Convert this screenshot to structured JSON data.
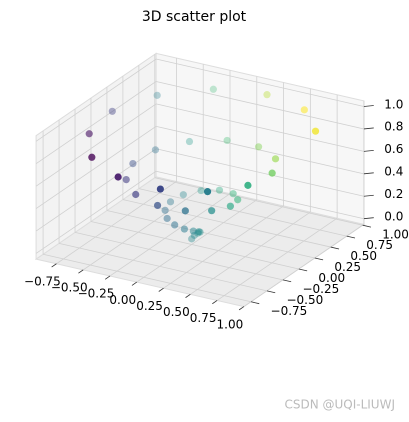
{
  "chart_data": {
    "type": "scatter3d",
    "title": "3D scatter plot",
    "x": [
      0,
      0.012,
      0.042,
      0.075,
      0.091,
      0.075,
      0.021,
      -0.061,
      -0.151,
      -0.22,
      -0.24,
      -0.194,
      -0.084,
      0.07,
      0.23,
      0.352,
      0.396,
      0.339,
      0.185,
      -0.036,
      -0.272,
      -0.462,
      -0.55,
      -0.504,
      -0.322,
      -0.041,
      0.273,
      0.543,
      0.694,
      0.678,
      0.488,
      0.16,
      -0.23,
      -0.587,
      -0.817,
      -0.856,
      -0.676,
      -0.316,
      0.143,
      0.588,
      0.913
    ],
    "y": [
      0,
      0.022,
      0.027,
      0.005,
      -0.042,
      -0.1,
      -0.149,
      -0.164,
      -0.131,
      -0.047,
      0.071,
      0.195,
      0.288,
      0.318,
      0.264,
      0.13,
      -0.058,
      -0.256,
      -0.41,
      -0.474,
      -0.42,
      -0.25,
      0.002,
      0.278,
      0.506,
      0.624,
      0.59,
      0.402,
      0.096,
      -0.257,
      -0.57,
      -0.759,
      -0.766,
      -0.579,
      -0.234,
      0.193,
      0.594,
      0.87,
      0.94,
      0.778,
      0.408
    ],
    "z": [
      0,
      0.025,
      0.05,
      0.075,
      0.1,
      0.125,
      0.15,
      0.175,
      0.2,
      0.225,
      0.25,
      0.275,
      0.3,
      0.325,
      0.35,
      0.375,
      0.4,
      0.425,
      0.45,
      0.475,
      0.5,
      0.525,
      0.55,
      0.575,
      0.6,
      0.625,
      0.65,
      0.675,
      0.7,
      0.725,
      0.75,
      0.775,
      0.8,
      0.825,
      0.85,
      0.875,
      0.9,
      0.925,
      0.95,
      0.975,
      1
    ],
    "colormap": "viridis",
    "xlim": [
      -0.94,
      1.0
    ],
    "ylim": [
      -0.86,
      1.02
    ],
    "zlim": [
      -0.05,
      1.05
    ],
    "xticks": [
      {
        "value": -0.75,
        "label": "−0.75"
      },
      {
        "value": -0.5,
        "label": "−0.50"
      },
      {
        "value": -0.25,
        "label": "−0.25"
      },
      {
        "value": 0,
        "label": "0.00"
      },
      0.25,
      {
        "value": 0.5,
        "label": "0.50"
      },
      0.75,
      {
        "value": 1,
        "label": "1.00"
      }
    ],
    "yticks": [
      {
        "value": -0.75,
        "label": "−0.75"
      },
      {
        "value": -0.5,
        "label": "−0.50"
      },
      {
        "value": -0.25,
        "label": "−0.25"
      },
      {
        "value": 0,
        "label": "0.00"
      },
      0.25,
      {
        "value": 0.5,
        "label": "0.50"
      },
      0.75,
      {
        "value": 1,
        "label": "1.00"
      }
    ],
    "zticks": [
      {
        "value": 0,
        "label": "0.0"
      },
      0.2,
      0.4,
      0.6,
      0.8,
      {
        "value": 1,
        "label": "1.0"
      }
    ],
    "grid": true,
    "watermark": "CSDN @UQI-LIUWJ"
  }
}
